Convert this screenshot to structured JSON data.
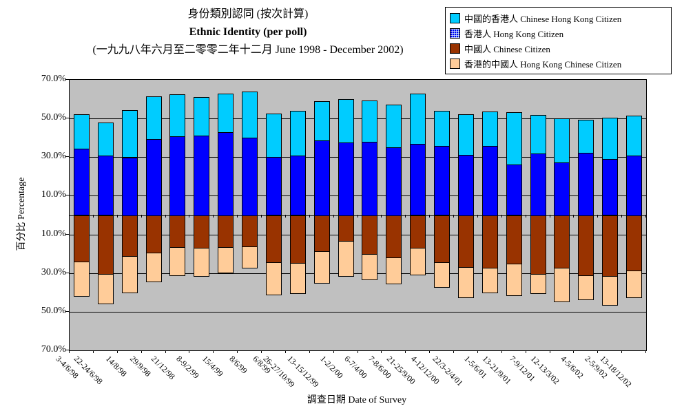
{
  "title": {
    "line1": "身份類別認同 (按次計算)",
    "line2": "Ethnic Identity (per poll)",
    "line3": "(一九九八年六月至二零零二年十二月 June 1998 - December 2002)"
  },
  "legend": {
    "position": "top-right",
    "items": [
      {
        "label": "中國的香港人 Chinese Hong Kong Citizen",
        "color": "#00CCFF",
        "pattern": "solid"
      },
      {
        "label": "香港人 Hong Kong Citizen",
        "color": "#0000FF",
        "pattern": "dotted-blue"
      },
      {
        "label": "中國人 Chinese Citizen",
        "color": "#993300",
        "pattern": "solid"
      },
      {
        "label": "香港的中國人 Hong Kong Chinese Citizen",
        "color": "#FFCC99",
        "pattern": "solid"
      }
    ]
  },
  "chart_data": {
    "type": "bar",
    "subtype": "stacked-diverging",
    "title": "身份類別認同 (按次計算) Ethnic Identity (per poll) (一九九八年六月至二零零二年十二月 June 1998 - December 2002)",
    "xlabel": "調查日期 Date of Survey",
    "ylabel": "百分比 Percentage",
    "ylim": [
      -70,
      70
    ],
    "y_ticks": [
      70,
      50,
      30,
      10,
      -10,
      -30,
      -50,
      -70
    ],
    "y_tick_labels": [
      "70.0%",
      "50.0%",
      "30.0%",
      "10.0%",
      "10.0%",
      "30.0%",
      "50.0%",
      "70.0%"
    ],
    "grid": "horizontal",
    "plot_background": "#C0C0C0",
    "categories": [
      "3-4/6/98",
      "22-24/6/98",
      "14/8/98",
      "29/9/98",
      "21/12/98",
      "8-9/2/99",
      "15/4/99",
      "8/6/99",
      "6/8/99",
      "26-27/10/99",
      "13-15/12/99",
      "1-2/2/00",
      "6-7/4/00",
      "7-8/6/00",
      "21-25/9/00",
      "4-12/12/00",
      "22/3-2/4/01",
      "1-5/6/01",
      "13-21/9/01",
      "7-9/12/01",
      "12-13/3/02",
      "4-5/6/02",
      "2-5/9/02",
      "13-18/12/02"
    ],
    "series": [
      {
        "name": "香港人 Hong Kong Citizen",
        "color": "#0000FF",
        "direction": "up",
        "stack_order": 1,
        "values": [
          34.6,
          30.7,
          29.8,
          39.5,
          40.8,
          41.3,
          43.1,
          40.2,
          30.1,
          30.8,
          38.7,
          37.7,
          38.1,
          35.2,
          36.7,
          35.7,
          31.3,
          35.9,
          26.1,
          31.9,
          27.4,
          32.3,
          28.9,
          30.9
        ]
      },
      {
        "name": "中國的香港人 Chinese Hong Kong Citizen",
        "color": "#00CCFF",
        "direction": "up",
        "stack_order": 2,
        "values": [
          17.7,
          17.1,
          24.4,
          22.0,
          21.7,
          19.8,
          19.8,
          23.9,
          22.6,
          23.0,
          20.3,
          22.5,
          21.2,
          22.1,
          26.0,
          18.2,
          20.9,
          17.7,
          27.1,
          19.9,
          22.7,
          17.2,
          21.4,
          20.7
        ]
      },
      {
        "name": "中國人 Chinese Citizen",
        "color": "#993300",
        "direction": "down",
        "stack_order": 1,
        "values": [
          23.9,
          30.5,
          21.1,
          19.5,
          16.5,
          16.8,
          16.7,
          16.1,
          24.4,
          24.7,
          18.8,
          13.3,
          20.0,
          21.8,
          16.8,
          24.4,
          26.9,
          27.3,
          25.1,
          30.4,
          27.1,
          31.3,
          31.4,
          28.6
        ]
      },
      {
        "name": "香港的中國人 Hong Kong Chinese Citizen",
        "color": "#FFCC99",
        "direction": "down",
        "stack_order": 2,
        "values": [
          17.9,
          15.4,
          19.0,
          15.0,
          14.5,
          14.6,
          13.2,
          11.0,
          16.8,
          15.5,
          16.5,
          18.1,
          13.3,
          13.6,
          13.9,
          13.0,
          15.7,
          12.9,
          16.4,
          10.0,
          17.3,
          12.6,
          14.8,
          13.8
        ]
      }
    ]
  }
}
